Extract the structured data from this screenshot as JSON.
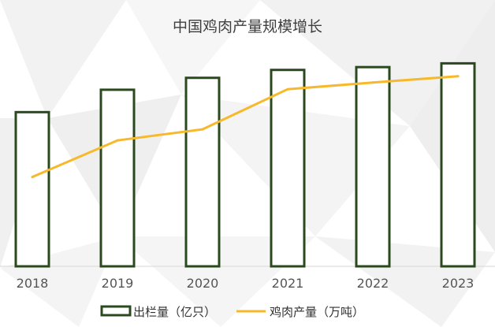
{
  "chart_data": {
    "type": "bar",
    "title": "中国鸡肉产量规模增长",
    "categories": [
      "2018",
      "2019",
      "2020",
      "2021",
      "2022",
      "2023"
    ],
    "series": [
      {
        "name": "出栏量（亿只）",
        "type": "bar",
        "values": [
          126.7,
          145.1,
          154.9,
          161.4,
          163.7,
          166.8
        ]
      },
      {
        "name": "鸡肉产量（万吨）",
        "type": "line",
        "values": [
          1171,
          1405,
          1476,
          1732,
          1775,
          1815
        ]
      }
    ],
    "legend_position": "bottom-center",
    "grid": false,
    "colors": {
      "bar_border": "#2a4a1e",
      "bar_fill": "#ffffff",
      "line": "#f7b92b",
      "axis": "#d6d6d6"
    }
  }
}
